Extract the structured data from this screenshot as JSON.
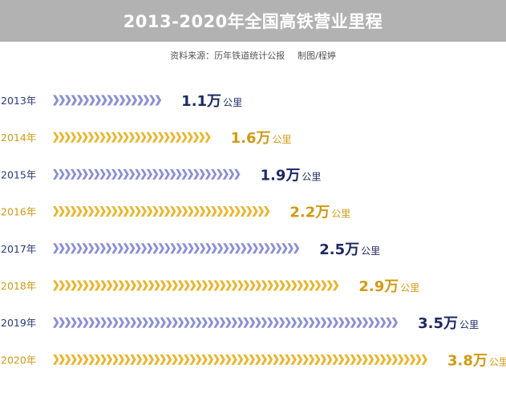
{
  "header": {
    "title": "2013-2020年全国高铁营业里程",
    "source": "资料来源：历年铁道统计公报",
    "credit": "制图/程婷"
  },
  "colors": {
    "purple": "#8a8fd6",
    "gold": "#e9b52c",
    "navy_text": "#1e2a63",
    "gold_text": "#d19a12",
    "title_bg": "#b2b2b2"
  },
  "chart_data": {
    "type": "bar",
    "orientation": "horizontal",
    "title": "2013-2020年全国高铁营业里程",
    "categories": [
      "2013年",
      "2014年",
      "2015年",
      "2016年",
      "2017年",
      "2018年",
      "2019年",
      "2020年"
    ],
    "values": [
      1.1,
      1.6,
      1.9,
      2.2,
      2.5,
      2.9,
      3.5,
      3.8
    ],
    "value_labels": [
      "1.1万",
      "1.6万",
      "1.9万",
      "2.2万",
      "2.5万",
      "2.9万",
      "3.5万",
      "3.8万"
    ],
    "unit": "公里",
    "bar_colors": [
      "purple",
      "gold",
      "purple",
      "gold",
      "purple",
      "gold",
      "purple",
      "gold"
    ],
    "xlim": [
      0,
      3.8
    ],
    "grid": false,
    "legend": "none"
  }
}
